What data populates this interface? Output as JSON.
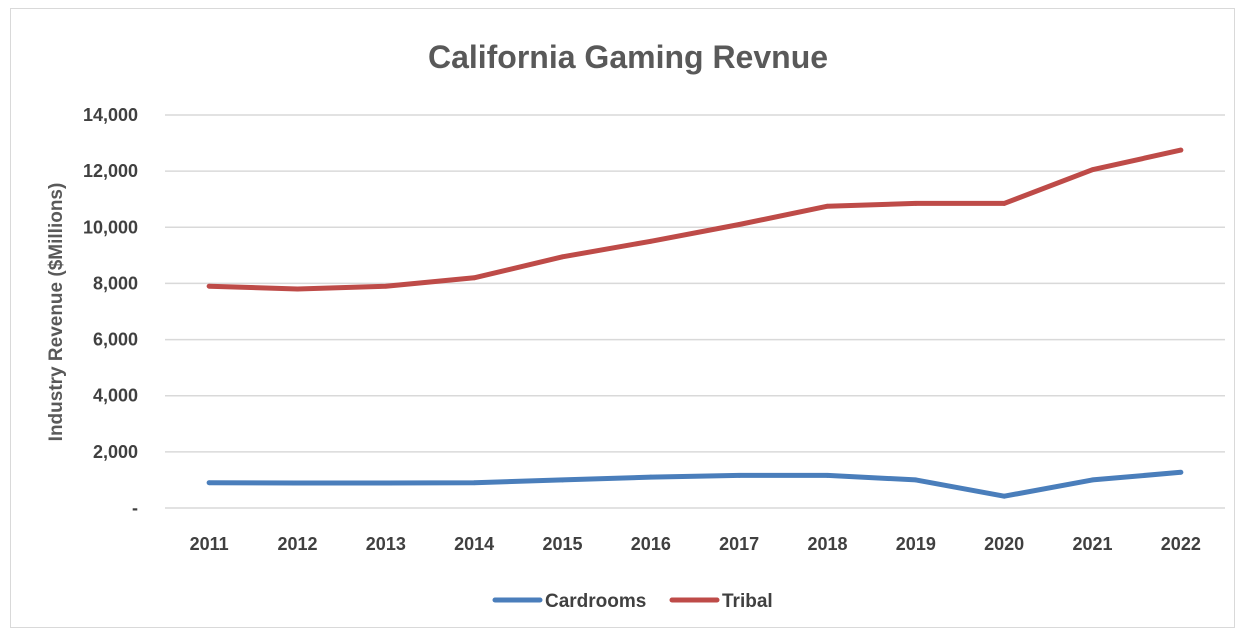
{
  "chart_data": {
    "type": "line",
    "title": "California Gaming Revnue",
    "xlabel": "",
    "ylabel": "Industry Revenue ($Millions)",
    "ylim": [
      0,
      14000
    ],
    "yticks": [
      {
        "value": 0,
        "label": "-"
      },
      {
        "value": 2000,
        "label": "2,000"
      },
      {
        "value": 4000,
        "label": "4,000"
      },
      {
        "value": 6000,
        "label": "6,000"
      },
      {
        "value": 8000,
        "label": "8,000"
      },
      {
        "value": 10000,
        "label": "10,000"
      },
      {
        "value": 12000,
        "label": "12,000"
      },
      {
        "value": 14000,
        "label": "14,000"
      }
    ],
    "grid": true,
    "legend": "bottom",
    "categories": [
      "2011",
      "2012",
      "2013",
      "2014",
      "2015",
      "2016",
      "2017",
      "2018",
      "2019",
      "2020",
      "2021",
      "2022"
    ],
    "series": [
      {
        "name": "Cardrooms",
        "color": "#4a7ebb",
        "values": [
          900,
          890,
          890,
          900,
          1000,
          1100,
          1160,
          1160,
          1000,
          420,
          1000,
          1270
        ]
      },
      {
        "name": "Tribal",
        "color": "#be4b48",
        "values": [
          7900,
          7800,
          7900,
          8200,
          8950,
          9500,
          10100,
          10750,
          10850,
          10850,
          12050,
          12750
        ]
      }
    ]
  }
}
